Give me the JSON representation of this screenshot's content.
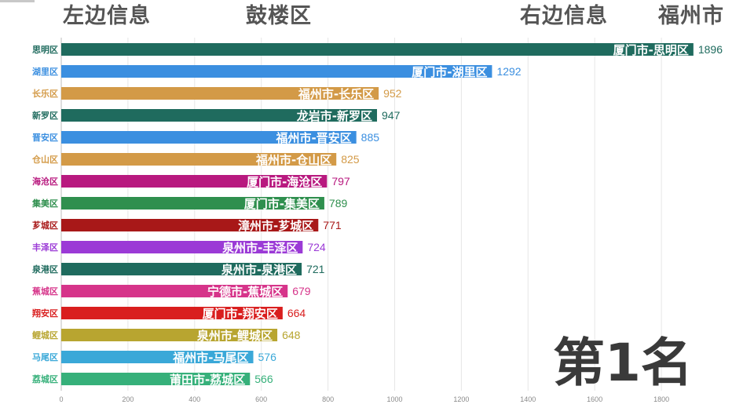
{
  "header": {
    "left_label": "左边信息",
    "left_value": "鼓楼区",
    "right_label": "右边信息",
    "right_value": "福州市"
  },
  "rank_text": "第1名",
  "chart_data": {
    "type": "bar",
    "orientation": "horizontal",
    "xlim": [
      0,
      1900
    ],
    "ticks": [
      0,
      200,
      400,
      600,
      800,
      1000,
      1200,
      1400,
      1600,
      1800
    ],
    "grid": true,
    "categories": [
      "思明区",
      "湖里区",
      "长乐区",
      "新罗区",
      "晋安区",
      "仓山区",
      "海沧区",
      "集美区",
      "芗城区",
      "丰泽区",
      "泉港区",
      "蕉城区",
      "翔安区",
      "鲤城区",
      "马尾区",
      "荔城区"
    ],
    "bar_labels": [
      "厦门市-思明区",
      "厦门市-湖里区",
      "福州市-长乐区",
      "龙岩市-新罗区",
      "福州市-晋安区",
      "福州市-仓山区",
      "厦门市-海沧区",
      "厦门市-集美区",
      "漳州市-芗城区",
      "泉州市-丰泽区",
      "泉州市-泉港区",
      "宁德市-蕉城区",
      "厦门市-翔安区",
      "泉州市-鲤城区",
      "福州市-马尾区",
      "莆田市-荔城区"
    ],
    "values": [
      1896,
      1292,
      952,
      947,
      885,
      825,
      797,
      789,
      771,
      724,
      721,
      679,
      664,
      648,
      576,
      566
    ],
    "colors": [
      "#1f6b5e",
      "#3b8fe0",
      "#d39a47",
      "#1f6b5e",
      "#3b8fe0",
      "#d39a47",
      "#b8197f",
      "#2f8f4e",
      "#a81818",
      "#9b3ad6",
      "#1f6b5e",
      "#d6348a",
      "#d91e1e",
      "#b8a530",
      "#3aa8d8",
      "#36b07a"
    ]
  }
}
